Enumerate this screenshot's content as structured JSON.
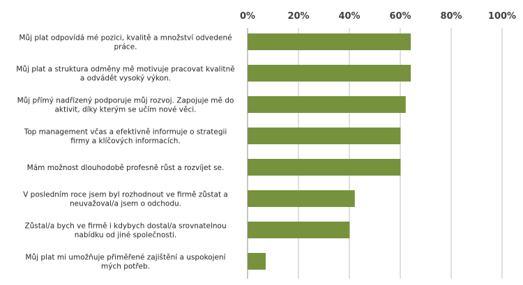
{
  "chart_data": {
    "type": "bar",
    "orientation": "horizontal",
    "categories": [
      [
        "Můj plat odpovídá mé pozici, kvalitě a množství odvedené",
        "práce."
      ],
      [
        "Můj plat a struktura odměny mě motivuje pracovat kvalitně",
        "a odvádět vysoký výkon."
      ],
      [
        "Můj přímý nadřízený podporuje můj rozvoj. Zapojuje mě do",
        "aktivit, díky kterým se učím nové věci."
      ],
      [
        "Top management včas a efektivně informuje o strategii",
        "firmy a klíčových informacích."
      ],
      [
        "Mám možnost dlouhodobě profesně růst a rozvíjet se."
      ],
      [
        "V posledním roce jsem byl rozhodnout ve firmě zůstat a",
        "neuvažoval/a jsem o odchodu."
      ],
      [
        "Zůstal/a bych ve firmě i kdybych dostal/a srovnatelnou",
        "nabídku od jiné společnosti."
      ],
      [
        "Můj plat mi umožňuje přiměřené zajištění a uspokojení",
        "mých potřeb."
      ]
    ],
    "values": [
      64,
      64,
      62,
      60,
      60,
      42,
      40,
      7
    ],
    "xlim": [
      0,
      100
    ],
    "xticks": [
      "0%",
      "20%",
      "40%",
      "60%",
      "80%",
      "100%"
    ],
    "xtick_values": [
      0,
      20,
      40,
      60,
      80,
      100
    ],
    "xaxis_position": "top",
    "grid": true,
    "bar_color": "#76923c"
  }
}
